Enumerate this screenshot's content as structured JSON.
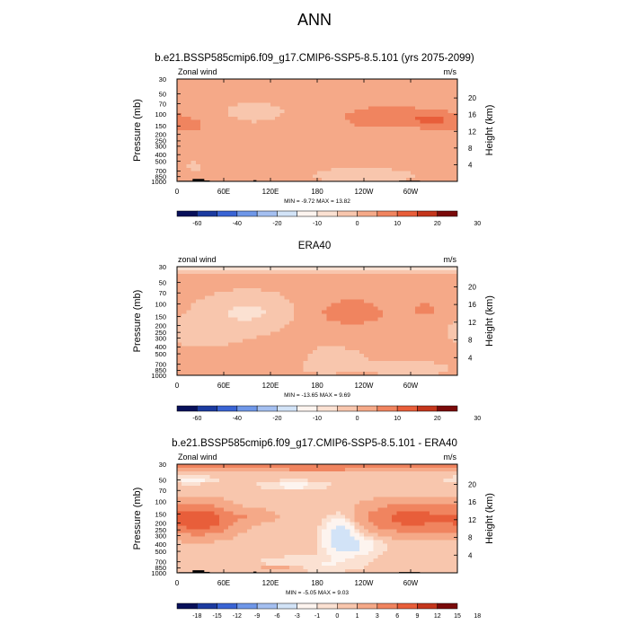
{
  "main_title": "ANN",
  "colors": {
    "blue_scale": [
      "#08105a",
      "#1c3ba0",
      "#3a64d4",
      "#6f97e8",
      "#a4bff0",
      "#d2e3f7"
    ],
    "neutral": "#fdf4ef",
    "red_scale": [
      "#fbe1d2",
      "#f8c6ad",
      "#f5a988",
      "#f0845f",
      "#e85e3a",
      "#c4361c",
      "#7a0a0a"
    ]
  },
  "chart_data": [
    {
      "type": "heatmap",
      "panel": "model",
      "title": "b.e21.BSSP585cmip6.f09_g17.CMIP6-SSP5-8.5.101 (yrs 2075-2099)",
      "left_label": "Zonal wind",
      "right_label": "m/s",
      "ylabel": "Pressure (mb)",
      "ylabel_right": "Height (km)",
      "x_ticks": [
        "0",
        "60E",
        "120E",
        "180",
        "120W",
        "60W"
      ],
      "x_tick_lon": [
        0,
        60,
        120,
        180,
        240,
        300
      ],
      "xlim": [
        0,
        360
      ],
      "y_ticks": [
        "30",
        "50",
        "70",
        "100",
        "150",
        "200",
        "250",
        "300",
        "400",
        "500",
        "700",
        "850",
        "1000"
      ],
      "y_tick_p": [
        30,
        50,
        70,
        100,
        150,
        200,
        250,
        300,
        400,
        500,
        700,
        850,
        1000
      ],
      "ylim": [
        1000,
        30
      ],
      "height_ticks": [
        "20",
        "16",
        "12",
        "8",
        "4"
      ],
      "height_tick_km": [
        20,
        16,
        12,
        8,
        4
      ],
      "stats": "MIN = -9.72  MAX = 13.82",
      "min": -9.72,
      "max": 13.82,
      "colorbar_levels": [
        -70,
        -60,
        -50,
        -40,
        -30,
        -20,
        -15,
        -10,
        -5,
        0,
        5,
        10,
        15,
        20,
        25,
        30,
        35
      ],
      "colorbar_labels": [
        "-60",
        "-40",
        "-20",
        "-10",
        "0",
        "10",
        "20",
        "30"
      ],
      "colorbar_label_values": [
        -60,
        -40,
        -20,
        -10,
        0,
        10,
        20,
        30
      ],
      "features": [
        {
          "lon": 270,
          "p": 110,
          "wlon": 70,
          "wp": 0.45,
          "value": 8
        },
        {
          "lon": 330,
          "p": 120,
          "wlon": 30,
          "wp": 0.3,
          "value": 6
        },
        {
          "lon": 15,
          "p": 150,
          "wlon": 40,
          "wp": 0.4,
          "value": 5
        },
        {
          "lon": 100,
          "p": 95,
          "wlon": 30,
          "wp": 0.25,
          "value": -3
        },
        {
          "lon": 100,
          "p": 600,
          "wlon": 60,
          "wp": 0.3,
          "value": 2.5
        },
        {
          "lon": 240,
          "p": 800,
          "wlon": 60,
          "wp": 0.2,
          "value": -2.5
        },
        {
          "lon": 20,
          "p": 600,
          "wlon": 20,
          "wp": 0.25,
          "value": -2
        },
        {
          "lon": 200,
          "p": 250,
          "wlon": 80,
          "wp": 0.5,
          "value": 2
        },
        {
          "lon": 340,
          "p": 600,
          "wlon": 40,
          "wp": 0.3,
          "value": 2
        }
      ],
      "base_value": 0.5,
      "top_value": 0
    },
    {
      "type": "heatmap",
      "panel": "reference",
      "title": "ERA40",
      "left_label": "zonal wind",
      "right_label": "m/s",
      "ylabel": "Pressure (mb)",
      "ylabel_right": "Height (km)",
      "x_ticks": [
        "0",
        "60E",
        "120E",
        "180",
        "120W",
        "60W"
      ],
      "x_tick_lon": [
        0,
        60,
        120,
        180,
        240,
        300
      ],
      "xlim": [
        0,
        360
      ],
      "y_ticks": [
        "30",
        "50",
        "70",
        "100",
        "150",
        "200",
        "250",
        "300",
        "400",
        "500",
        "700",
        "850",
        "1000"
      ],
      "y_tick_p": [
        30,
        50,
        70,
        100,
        150,
        200,
        250,
        300,
        400,
        500,
        700,
        850,
        1000
      ],
      "ylim": [
        1000,
        30
      ],
      "height_ticks": [
        "20",
        "16",
        "12",
        "8",
        "4"
      ],
      "height_tick_km": [
        20,
        16,
        12,
        8,
        4
      ],
      "stats": "MIN = -13.65  MAX = 9.69",
      "min": -13.65,
      "max": 9.69,
      "colorbar_levels": [
        -70,
        -60,
        -50,
        -40,
        -30,
        -20,
        -15,
        -10,
        -5,
        0,
        5,
        10,
        15,
        20,
        25,
        30,
        35
      ],
      "colorbar_labels": [
        "-60",
        "-40",
        "-20",
        "-10",
        "0",
        "10",
        "20",
        "30"
      ],
      "colorbar_label_values": [
        -60,
        -40,
        -20,
        -10,
        0,
        10,
        20,
        30
      ],
      "features": [
        {
          "lon": 90,
          "p": 130,
          "wlon": 45,
          "wp": 0.45,
          "value": -7
        },
        {
          "lon": 225,
          "p": 130,
          "wlon": 50,
          "wp": 0.5,
          "value": 8
        },
        {
          "lon": 320,
          "p": 120,
          "wlon": 20,
          "wp": 0.3,
          "value": 6
        },
        {
          "lon": 40,
          "p": 250,
          "wlon": 40,
          "wp": 0.4,
          "value": -3
        },
        {
          "lon": 100,
          "p": 550,
          "wlon": 70,
          "wp": 0.3,
          "value": 2.5
        },
        {
          "lon": 190,
          "p": 600,
          "wlon": 45,
          "wp": 0.4,
          "value": -2
        },
        {
          "lon": 300,
          "p": 800,
          "wlon": 45,
          "wp": 0.2,
          "value": -2
        }
      ],
      "base_value": 0.5,
      "top_value": -6
    },
    {
      "type": "heatmap",
      "panel": "difference",
      "title": "b.e21.BSSP585cmip6.f09_g17.CMIP6-SSP5-8.5.101 - ERA40",
      "left_label": "Zonal wind",
      "right_label": "m/s",
      "ylabel": "Pressure (mb)",
      "ylabel_right": "Height (km)",
      "x_ticks": [
        "0",
        "60E",
        "120E",
        "180",
        "120W",
        "60W"
      ],
      "x_tick_lon": [
        0,
        60,
        120,
        180,
        240,
        300
      ],
      "xlim": [
        0,
        360
      ],
      "y_ticks": [
        "30",
        "50",
        "70",
        "100",
        "150",
        "200",
        "250",
        "300",
        "400",
        "500",
        "700",
        "850",
        "1000"
      ],
      "y_tick_p": [
        30,
        50,
        70,
        100,
        150,
        200,
        250,
        300,
        400,
        500,
        700,
        850,
        1000
      ],
      "ylim": [
        1000,
        30
      ],
      "height_ticks": [
        "20",
        "16",
        "12",
        "8",
        "4"
      ],
      "height_tick_km": [
        20,
        16,
        12,
        8,
        4
      ],
      "stats": "MIN = -5.05  MAX = 9.03",
      "min": -5.05,
      "max": 9.03,
      "colorbar_levels": [
        -21,
        -18,
        -15,
        -12,
        -9,
        -6,
        -3,
        -1,
        0,
        1,
        3,
        6,
        9,
        12,
        15,
        18,
        21
      ],
      "colorbar_labels": [
        "-18",
        "-15",
        "-12",
        "-9",
        "-6",
        "-3",
        "-1",
        "0",
        "1",
        "3",
        "6",
        "9",
        "12",
        "15",
        "18"
      ],
      "colorbar_label_values": [
        -18,
        -15,
        -12,
        -9,
        -6,
        -3,
        -1,
        0,
        1,
        3,
        6,
        9,
        12,
        15,
        18
      ],
      "features": [
        {
          "lon": 30,
          "p": 180,
          "wlon": 40,
          "wp": 0.45,
          "value": 8
        },
        {
          "lon": 300,
          "p": 170,
          "wlon": 55,
          "wp": 0.45,
          "value": 7
        },
        {
          "lon": 210,
          "p": 300,
          "wlon": 20,
          "wp": 0.55,
          "value": -5
        },
        {
          "lon": 230,
          "p": 420,
          "wlon": 30,
          "wp": 0.3,
          "value": -3
        },
        {
          "lon": 150,
          "p": 60,
          "wlon": 40,
          "wp": 0.15,
          "value": -2
        },
        {
          "lon": 20,
          "p": 50,
          "wlon": 30,
          "wp": 0.12,
          "value": -2
        },
        {
          "lon": 100,
          "p": 160,
          "wlon": 25,
          "wp": 0.2,
          "value": 2
        },
        {
          "lon": 180,
          "p": 33,
          "wlon": 200,
          "wp": 0.1,
          "value": 3
        },
        {
          "lon": 170,
          "p": 750,
          "wlon": 70,
          "wp": 0.25,
          "value": -1.5
        },
        {
          "lon": 130,
          "p": 850,
          "wlon": 30,
          "wp": 0.1,
          "value": 2
        }
      ],
      "base_value": 0.5,
      "top_value": 3
    }
  ],
  "topography": [
    {
      "lon0": 2,
      "lon1": 25,
      "p": 980
    },
    {
      "lon0": 20,
      "lon1": 35,
      "p": 920
    },
    {
      "lon0": 30,
      "lon1": 42,
      "p": 970
    },
    {
      "lon0": 98,
      "lon1": 102,
      "p": 960
    },
    {
      "lon0": 285,
      "lon1": 312,
      "p": 975
    }
  ]
}
